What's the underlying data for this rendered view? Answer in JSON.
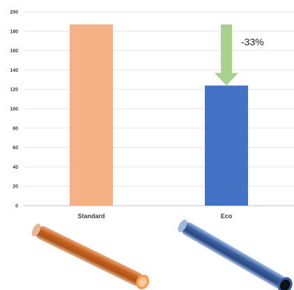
{
  "chart_data": {
    "type": "bar",
    "categories": [
      "Standard",
      "Eco"
    ],
    "values": [
      187,
      124
    ],
    "colors": [
      "#F4B183",
      "#4472C4"
    ],
    "ylim": [
      0,
      200
    ],
    "yticks": [
      0,
      20,
      40,
      60,
      80,
      100,
      120,
      140,
      160,
      180,
      200
    ],
    "grid": true,
    "title": "",
    "xlabel": "",
    "ylabel": "",
    "annotation": {
      "text": "-33%",
      "arrow_color": "#A9D18E",
      "arrow_from": 187,
      "arrow_to": 124,
      "category": "Eco"
    }
  },
  "illustrations": {
    "standard": {
      "icon": "orange-pipe-icon",
      "color": "#C55A11"
    },
    "eco": {
      "icon": "blue-pipe-icon",
      "color": "#2F5597"
    }
  }
}
